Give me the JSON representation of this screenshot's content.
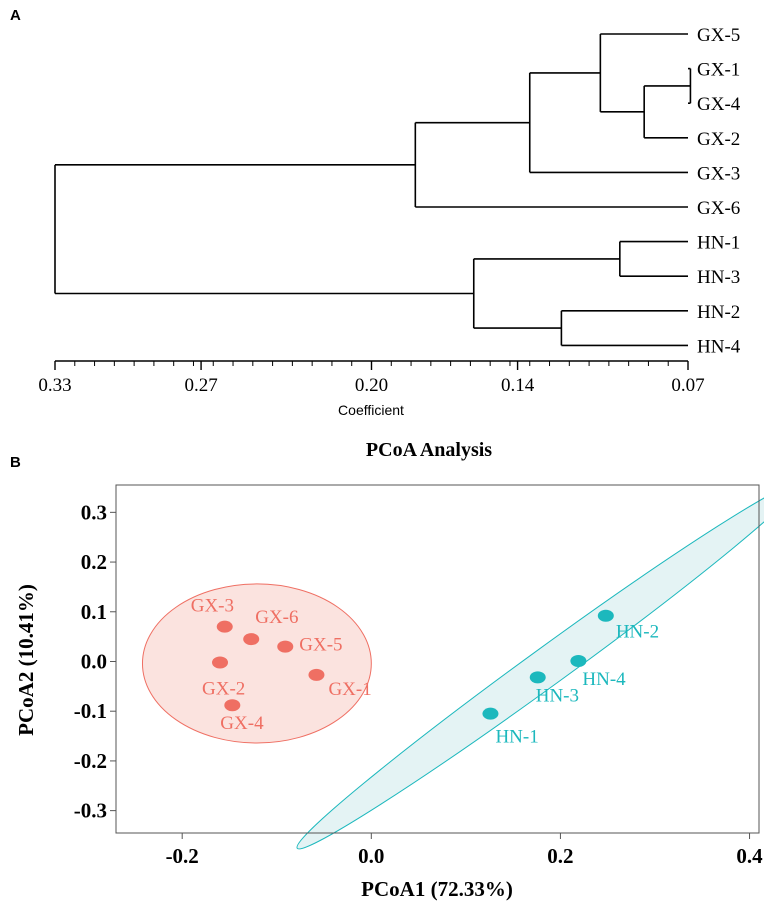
{
  "panels": {
    "a": "A",
    "b": "B"
  },
  "chart_data": [
    {
      "type": "dendrogram",
      "xlabel": "Coefficient",
      "xlim": [
        0.33,
        0.07
      ],
      "xticks": [
        "0.33",
        "0.27",
        "0.20",
        "0.14",
        "0.07"
      ],
      "xtick_values": [
        0.33,
        0.27,
        0.2,
        0.14,
        0.07
      ],
      "leaves": [
        "GX-5",
        "GX-1",
        "GX-4",
        "GX-2",
        "GX-3",
        "GX-6",
        "HN-1",
        "HN-3",
        "HN-2",
        "HN-4"
      ],
      "merges": [
        {
          "id": "m14",
          "children": [
            "GX-1",
            "GX-4"
          ],
          "height": 0.069
        },
        {
          "id": "m142",
          "children": [
            "m14",
            "GX-2"
          ],
          "height": 0.088
        },
        {
          "id": "m5142",
          "children": [
            "GX-5",
            "m142"
          ],
          "height": 0.106
        },
        {
          "id": "m51423",
          "children": [
            "m5142",
            "GX-3"
          ],
          "height": 0.135
        },
        {
          "id": "mGX",
          "children": [
            "m51423",
            "GX-6"
          ],
          "height": 0.182
        },
        {
          "id": "mH13",
          "children": [
            "HN-1",
            "HN-3"
          ],
          "height": 0.098
        },
        {
          "id": "mH24",
          "children": [
            "HN-2",
            "HN-4"
          ],
          "height": 0.122
        },
        {
          "id": "mHN",
          "children": [
            "mH13",
            "mH24"
          ],
          "height": 0.158
        },
        {
          "id": "root",
          "children": [
            "mGX",
            "mHN"
          ],
          "height": 0.33
        }
      ]
    },
    {
      "type": "scatter",
      "title": "PCoA Analysis",
      "xlabel": "PCoA1 (72.33%)",
      "ylabel": "PCoA2 (10.41%)",
      "xlim": [
        -0.27,
        0.41
      ],
      "ylim": [
        -0.345,
        0.355
      ],
      "xticks": [
        "-0.2",
        "0.0",
        "0.2",
        "0.4"
      ],
      "xtick_values": [
        -0.2,
        0.0,
        0.2,
        0.4
      ],
      "yticks": [
        "0.3",
        "0.2",
        "0.1",
        "0.0",
        "-0.1",
        "-0.2",
        "-0.3"
      ],
      "ytick_values": [
        0.3,
        0.2,
        0.1,
        0.0,
        -0.1,
        -0.2,
        -0.3
      ],
      "grid": false,
      "series": [
        {
          "name": "GX",
          "color": "#ef6f63",
          "points": [
            {
              "label": "GX-3",
              "x": -0.155,
              "y": 0.07
            },
            {
              "label": "GX-6",
              "x": -0.127,
              "y": 0.045
            },
            {
              "label": "GX-5",
              "x": -0.091,
              "y": 0.03
            },
            {
              "label": "GX-2",
              "x": -0.16,
              "y": -0.002
            },
            {
              "label": "GX-1",
              "x": -0.058,
              "y": -0.027
            },
            {
              "label": "GX-4",
              "x": -0.147,
              "y": -0.088
            }
          ],
          "ellipse": {
            "cx": -0.121,
            "cy": -0.004,
            "rx": 0.121,
            "ry": 0.16,
            "angle": 0,
            "fill": "#fbe3df"
          }
        },
        {
          "name": "HN",
          "color": "#1cb8bd",
          "points": [
            {
              "label": "HN-2",
              "x": 0.248,
              "y": 0.092
            },
            {
              "label": "HN-4",
              "x": 0.219,
              "y": 0.001
            },
            {
              "label": "HN-3",
              "x": 0.176,
              "y": -0.032
            },
            {
              "label": "HN-1",
              "x": 0.126,
              "y": -0.105
            }
          ],
          "ellipse": {
            "cx": 0.187,
            "cy": -0.009,
            "rx": 0.328,
            "ry": 0.02,
            "angle": 36,
            "fill": "#e4f3f4"
          }
        }
      ]
    }
  ]
}
